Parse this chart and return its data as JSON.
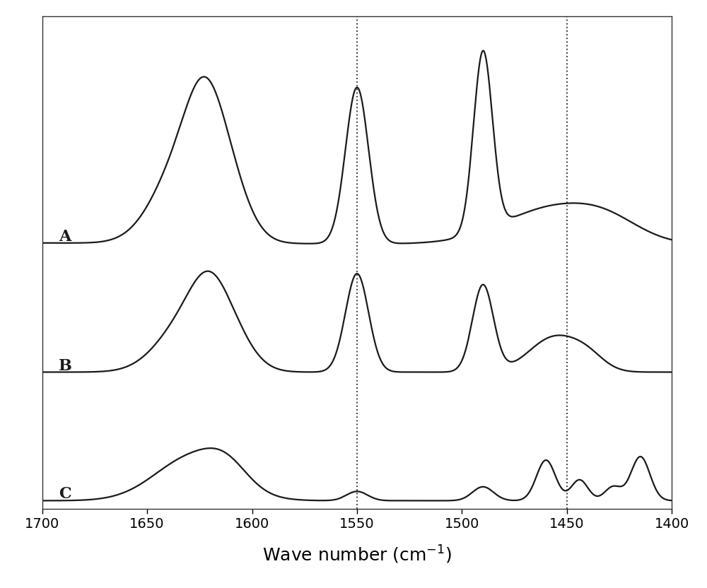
{
  "xlabel": "Wave number (cm$^{-1}$)",
  "xlim": [
    1700,
    1400
  ],
  "xticks": [
    1700,
    1650,
    1600,
    1550,
    1500,
    1450,
    1400
  ],
  "dotted_lines": [
    1550,
    1450
  ],
  "label_A": "A",
  "label_B": "B",
  "label_C": "C",
  "offsets": [
    2.2,
    1.1,
    0.0
  ],
  "line_color": "#1a1a1a",
  "background": "#ffffff",
  "figsize": [
    10.0,
    8.32
  ]
}
